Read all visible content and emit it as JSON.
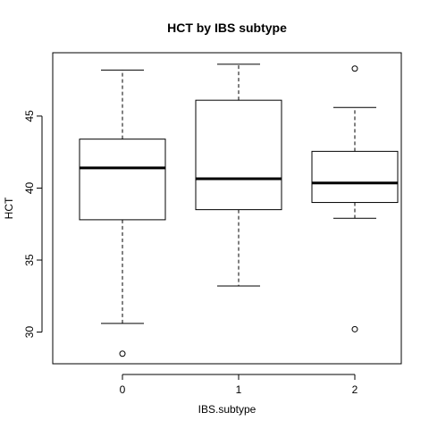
{
  "chart_data": {
    "type": "boxplot",
    "title": "HCT by IBS subtype",
    "xlabel": "IBS.subtype",
    "ylabel": "HCT",
    "ylim": [
      27.8,
      49.4
    ],
    "yticks": [
      30,
      35,
      40,
      45
    ],
    "categories": [
      "0",
      "1",
      "2"
    ],
    "boxes": [
      {
        "category": "0",
        "whisker_low": 30.6,
        "q1": 37.8,
        "median": 41.4,
        "q3": 43.4,
        "whisker_high": 48.2,
        "outliers": [
          28.5
        ]
      },
      {
        "category": "1",
        "whisker_low": 33.2,
        "q1": 38.5,
        "median": 40.65,
        "q3": 46.1,
        "whisker_high": 48.6,
        "outliers": []
      },
      {
        "category": "2",
        "whisker_low": 37.9,
        "q1": 39.0,
        "median": 40.35,
        "q3": 42.55,
        "whisker_high": 45.6,
        "outliers": [
          48.3,
          30.2
        ]
      }
    ],
    "grid": false,
    "legend": false
  }
}
